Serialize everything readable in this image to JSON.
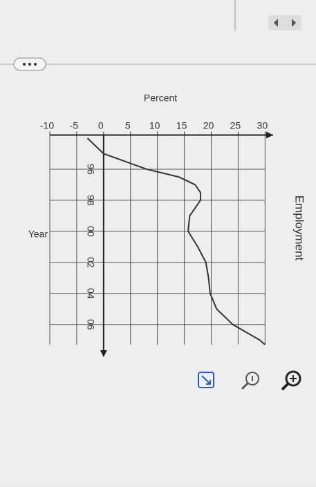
{
  "chart_data": {
    "type": "line",
    "title": "Employment",
    "y_label": "Percent",
    "x_label": "Year",
    "x": [
      94,
      95,
      96,
      96.5,
      97,
      97.5,
      98,
      98.5,
      99,
      100,
      101,
      102,
      103,
      104,
      105,
      106,
      107,
      107.3
    ],
    "series": [
      {
        "color": "#333333",
        "values": [
          -3,
          0,
          8,
          14,
          17,
          18,
          18,
          17,
          16,
          15.7,
          17.5,
          19,
          19.5,
          19.8,
          21,
          24,
          29,
          30
        ]
      }
    ],
    "xlim": [
      93.8,
      107.3
    ],
    "xticks": [
      {
        "value": 96,
        "label": "96"
      },
      {
        "value": 98,
        "label": "98"
      },
      {
        "value": 100,
        "label": "00"
      },
      {
        "value": 102,
        "label": "02"
      },
      {
        "value": 104,
        "label": "04"
      },
      {
        "value": 106,
        "label": "06"
      }
    ],
    "ylim": [
      -10,
      31.5
    ],
    "yticks": [
      -10,
      -5,
      0,
      5,
      10,
      15,
      20,
      25,
      30
    ],
    "grid": true
  }
}
